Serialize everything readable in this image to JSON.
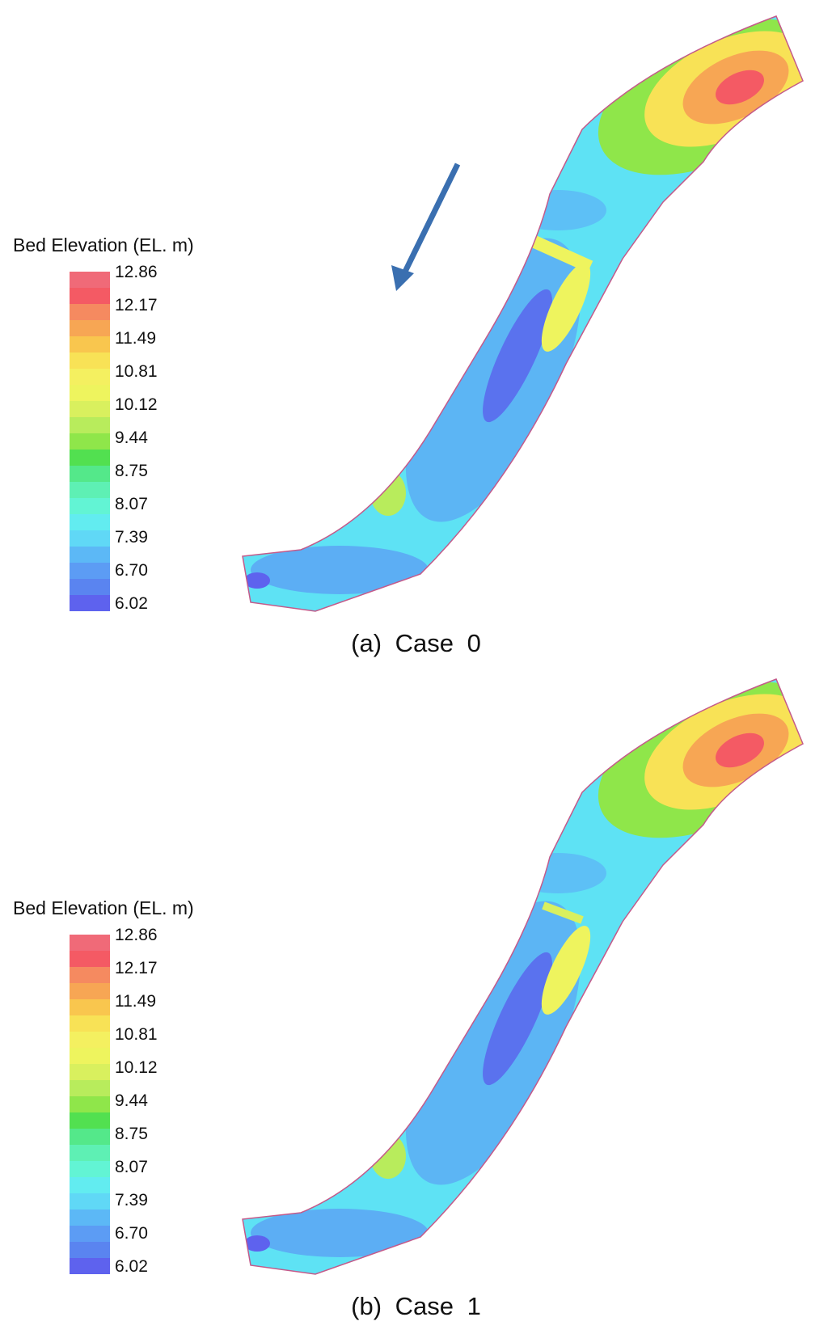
{
  "legend": {
    "title": "Bed Elevation (EL. m)",
    "ticks": [
      "12.86",
      "12.17",
      "11.49",
      "10.81",
      "10.12",
      "9.44",
      "8.75",
      "8.07",
      "7.39",
      "6.70",
      "6.02"
    ],
    "colors": [
      "#f06a78",
      "#f45a64",
      "#f58a60",
      "#f7a654",
      "#f9c64e",
      "#f8e256",
      "#f4f060",
      "#eef45e",
      "#d9f05e",
      "#b8ec5c",
      "#8fe64a",
      "#52e050",
      "#54e88a",
      "#5ef0b4",
      "#62f4d4",
      "#62ecf0",
      "#60d8f6",
      "#5cb8f6",
      "#5c9cf4",
      "#5a84f0",
      "#5e62ee"
    ]
  },
  "panels": [
    {
      "caption": "(a)  Case  0",
      "flow_arrow": true
    },
    {
      "caption": "(b)  Case  1",
      "flow_arrow": false
    }
  ]
}
